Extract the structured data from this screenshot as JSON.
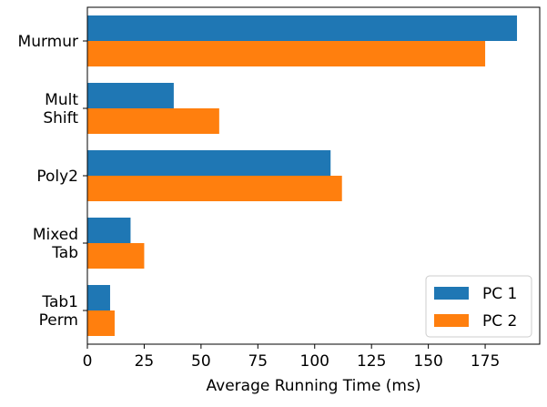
{
  "chart_data": {
    "type": "bar",
    "orientation": "horizontal",
    "categories": [
      [
        "Murmur"
      ],
      [
        "Mult",
        "Shift"
      ],
      [
        "Poly2"
      ],
      [
        "Mixed",
        "Tab"
      ],
      [
        "Tab1",
        "Perm"
      ]
    ],
    "series": [
      {
        "name": "PC 1",
        "color": "#1f77b4",
        "values": [
          189,
          38,
          107,
          19,
          10
        ]
      },
      {
        "name": "PC 2",
        "color": "#ff7f0e",
        "values": [
          175,
          58,
          112,
          25,
          12
        ]
      }
    ],
    "title": "",
    "xlabel": "Average Running Time (ms)",
    "ylabel": "",
    "xlim": [
      0,
      199
    ],
    "xticks": [
      0,
      25,
      50,
      75,
      100,
      125,
      150,
      175
    ],
    "grid": false,
    "legend_position": "lower-right"
  }
}
